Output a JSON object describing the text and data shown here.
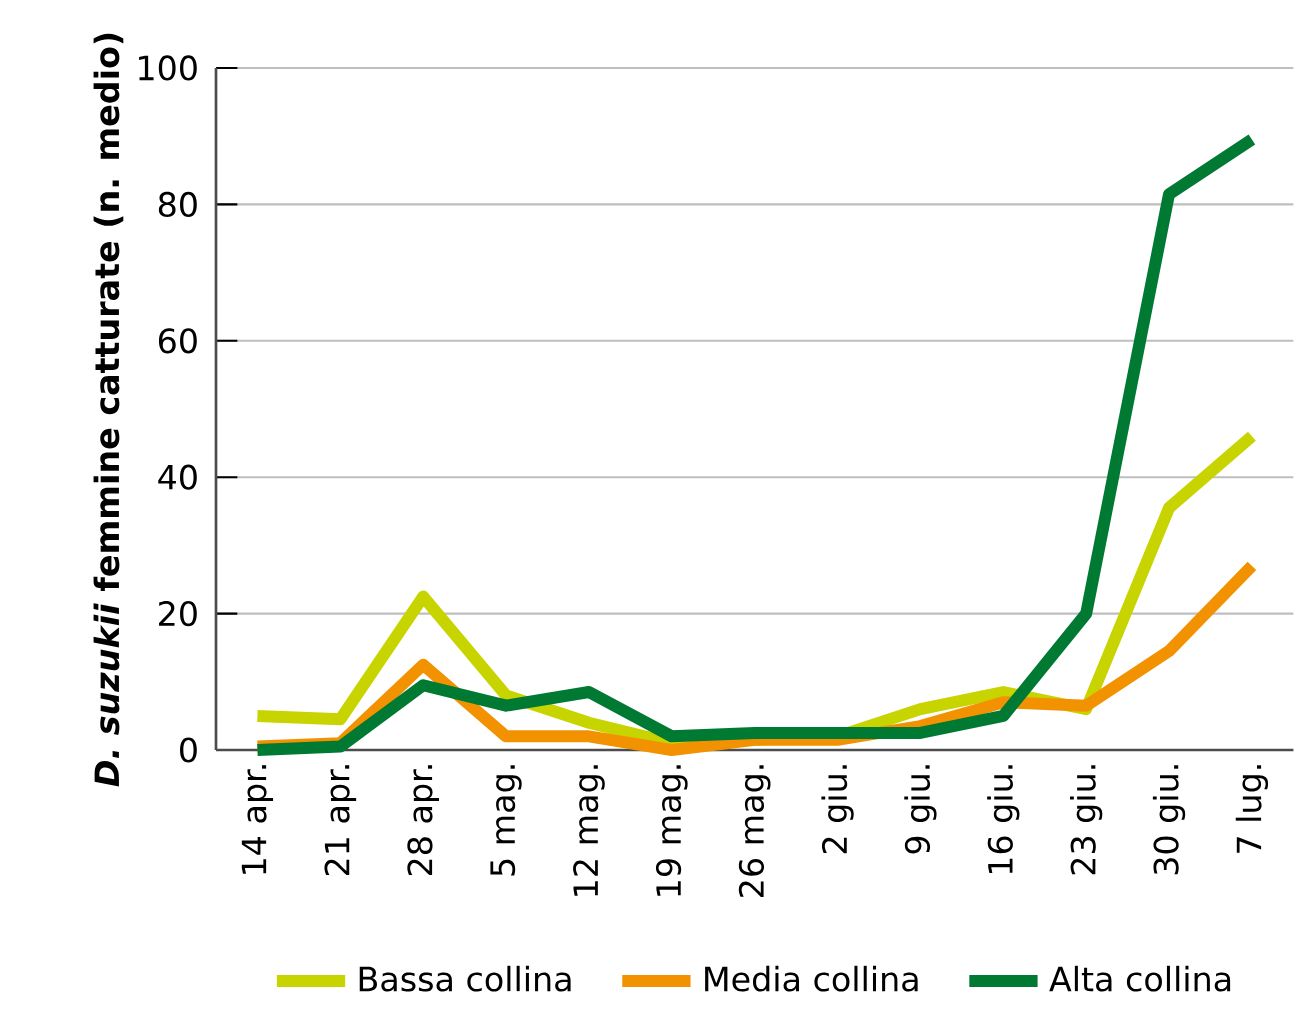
{
  "chart_data": {
    "type": "line",
    "ylabel": "*D. suzukii* femmine catturate (n. medio)",
    "categories": [
      "14 apr.",
      "21 apr.",
      "28 apr.",
      "5 mag.",
      "12 mag.",
      "19 mag.",
      "26 mag.",
      "2 giu.",
      "9 giu.",
      "16 giu.",
      "23 giu.",
      "30 giu.",
      "7 lug."
    ],
    "series": [
      {
        "name": "Bassa collina",
        "color": "#c8d400",
        "values": [
          5,
          4.5,
          22.5,
          8,
          4,
          1,
          1.5,
          2,
          6,
          8.5,
          6,
          35.5,
          46
        ]
      },
      {
        "name": "Media collina",
        "color": "#f39200",
        "values": [
          0.5,
          1,
          12.5,
          2,
          2,
          0,
          1.5,
          1.5,
          3.5,
          7,
          6.5,
          14.5,
          27
        ]
      },
      {
        "name": "Alta collina",
        "color": "#007a33",
        "values": [
          0,
          0.5,
          9.5,
          6.5,
          8.5,
          2,
          2.5,
          2.5,
          2.5,
          5,
          20,
          81.5,
          89.5
        ]
      }
    ],
    "ylim": [
      0,
      100
    ],
    "yticks": [
      0,
      20,
      40,
      60,
      80,
      100
    ],
    "grid": "y",
    "legend": "bottom",
    "marker": "none",
    "line_style": "solid"
  }
}
